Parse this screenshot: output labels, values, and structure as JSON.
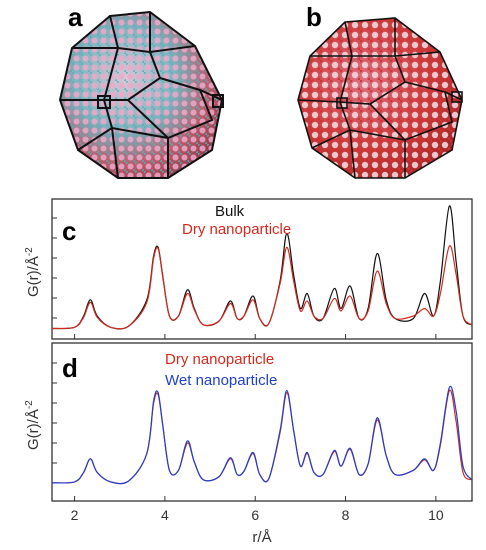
{
  "panels": {
    "a": "a",
    "b": "b",
    "c": "c",
    "d": "d"
  },
  "chart_data": [
    {
      "type": "line",
      "panel": "c",
      "ylabel": "G(r)/Å",
      "ylabel_superscript": "-2",
      "xlim": [
        1.5,
        10.8
      ],
      "legend_placement": "top-center",
      "series": [
        {
          "name": "Bulk",
          "color": "#111111",
          "x": [
            1.5,
            2.0,
            2.2,
            2.35,
            2.5,
            2.8,
            3.2,
            3.6,
            3.75,
            3.85,
            3.95,
            4.1,
            4.3,
            4.5,
            4.65,
            4.85,
            5.2,
            5.45,
            5.6,
            5.75,
            5.95,
            6.1,
            6.3,
            6.55,
            6.7,
            6.85,
            7.0,
            7.15,
            7.3,
            7.5,
            7.75,
            7.9,
            8.1,
            8.3,
            8.5,
            8.7,
            8.9,
            9.1,
            9.5,
            9.75,
            9.95,
            10.1,
            10.3,
            10.45,
            10.6,
            10.8
          ],
          "values": [
            0.02,
            0.03,
            0.12,
            0.25,
            0.12,
            0.03,
            0.04,
            0.25,
            0.6,
            0.67,
            0.45,
            0.12,
            0.12,
            0.33,
            0.18,
            0.05,
            0.08,
            0.24,
            0.1,
            0.12,
            0.28,
            0.1,
            0.06,
            0.4,
            0.78,
            0.45,
            0.18,
            0.3,
            0.12,
            0.1,
            0.34,
            0.18,
            0.36,
            0.1,
            0.18,
            0.62,
            0.25,
            0.1,
            0.1,
            0.3,
            0.12,
            0.4,
            1.0,
            0.55,
            0.12,
            0.05
          ]
        },
        {
          "name": "Dry nanoparticle",
          "color": "#d42a1e",
          "x": [
            1.5,
            2.0,
            2.2,
            2.35,
            2.5,
            2.8,
            3.2,
            3.6,
            3.75,
            3.85,
            3.95,
            4.1,
            4.3,
            4.5,
            4.65,
            4.85,
            5.2,
            5.45,
            5.6,
            5.75,
            5.95,
            6.1,
            6.3,
            6.55,
            6.7,
            6.85,
            7.0,
            7.15,
            7.3,
            7.5,
            7.75,
            7.9,
            8.1,
            8.3,
            8.5,
            8.7,
            8.9,
            9.1,
            9.5,
            9.75,
            9.95,
            10.1,
            10.3,
            10.45,
            10.6,
            10.8
          ],
          "values": [
            0.02,
            0.03,
            0.11,
            0.23,
            0.11,
            0.03,
            0.04,
            0.23,
            0.58,
            0.66,
            0.44,
            0.12,
            0.12,
            0.3,
            0.17,
            0.05,
            0.08,
            0.22,
            0.1,
            0.12,
            0.25,
            0.1,
            0.06,
            0.38,
            0.67,
            0.4,
            0.16,
            0.24,
            0.12,
            0.1,
            0.26,
            0.16,
            0.28,
            0.1,
            0.16,
            0.48,
            0.22,
            0.1,
            0.12,
            0.18,
            0.12,
            0.3,
            0.68,
            0.45,
            0.12,
            0.05
          ]
        }
      ]
    },
    {
      "type": "line",
      "panel": "d",
      "xlabel": "r/Å",
      "ylabel": "G(r)/Å",
      "ylabel_superscript": "-2",
      "xlim": [
        1.5,
        10.8
      ],
      "xticks": [
        2,
        4,
        6,
        8,
        10
      ],
      "legend_placement": "top-center",
      "series": [
        {
          "name": "Dry nanoparticle",
          "color": "#d42a1e",
          "x": [
            1.5,
            2.0,
            2.2,
            2.35,
            2.5,
            2.8,
            3.2,
            3.6,
            3.75,
            3.85,
            3.95,
            4.1,
            4.3,
            4.5,
            4.65,
            4.85,
            5.2,
            5.45,
            5.6,
            5.75,
            5.95,
            6.1,
            6.3,
            6.55,
            6.7,
            6.85,
            7.0,
            7.15,
            7.3,
            7.5,
            7.75,
            7.9,
            8.1,
            8.3,
            8.5,
            8.7,
            8.9,
            9.1,
            9.5,
            9.75,
            9.95,
            10.1,
            10.3,
            10.45,
            10.6,
            10.8
          ],
          "values": [
            0.02,
            0.03,
            0.12,
            0.25,
            0.12,
            0.03,
            0.04,
            0.3,
            0.78,
            0.86,
            0.58,
            0.14,
            0.14,
            0.4,
            0.22,
            0.05,
            0.08,
            0.25,
            0.1,
            0.13,
            0.3,
            0.1,
            0.06,
            0.5,
            0.88,
            0.52,
            0.18,
            0.3,
            0.12,
            0.1,
            0.32,
            0.18,
            0.34,
            0.1,
            0.2,
            0.62,
            0.28,
            0.1,
            0.14,
            0.24,
            0.14,
            0.38,
            0.9,
            0.6,
            0.12,
            0.05
          ]
        },
        {
          "name": "Wet nanoparticle",
          "color": "#1f3fd0",
          "x": [
            1.5,
            2.0,
            2.2,
            2.35,
            2.5,
            2.8,
            3.2,
            3.6,
            3.75,
            3.85,
            3.95,
            4.1,
            4.3,
            4.5,
            4.65,
            4.85,
            5.2,
            5.45,
            5.6,
            5.75,
            5.95,
            6.1,
            6.3,
            6.55,
            6.7,
            6.85,
            7.0,
            7.15,
            7.3,
            7.5,
            7.75,
            7.9,
            8.1,
            8.3,
            8.5,
            8.7,
            8.9,
            9.1,
            9.5,
            9.75,
            9.95,
            10.1,
            10.3,
            10.45,
            10.6,
            10.8
          ],
          "values": [
            0.02,
            0.03,
            0.12,
            0.25,
            0.12,
            0.03,
            0.04,
            0.3,
            0.8,
            0.88,
            0.58,
            0.14,
            0.14,
            0.42,
            0.22,
            0.05,
            0.08,
            0.26,
            0.1,
            0.13,
            0.31,
            0.1,
            0.06,
            0.52,
            0.9,
            0.52,
            0.18,
            0.31,
            0.12,
            0.1,
            0.33,
            0.18,
            0.35,
            0.1,
            0.2,
            0.64,
            0.28,
            0.1,
            0.14,
            0.25,
            0.14,
            0.4,
            0.93,
            0.7,
            0.18,
            0.05
          ]
        }
      ]
    }
  ]
}
